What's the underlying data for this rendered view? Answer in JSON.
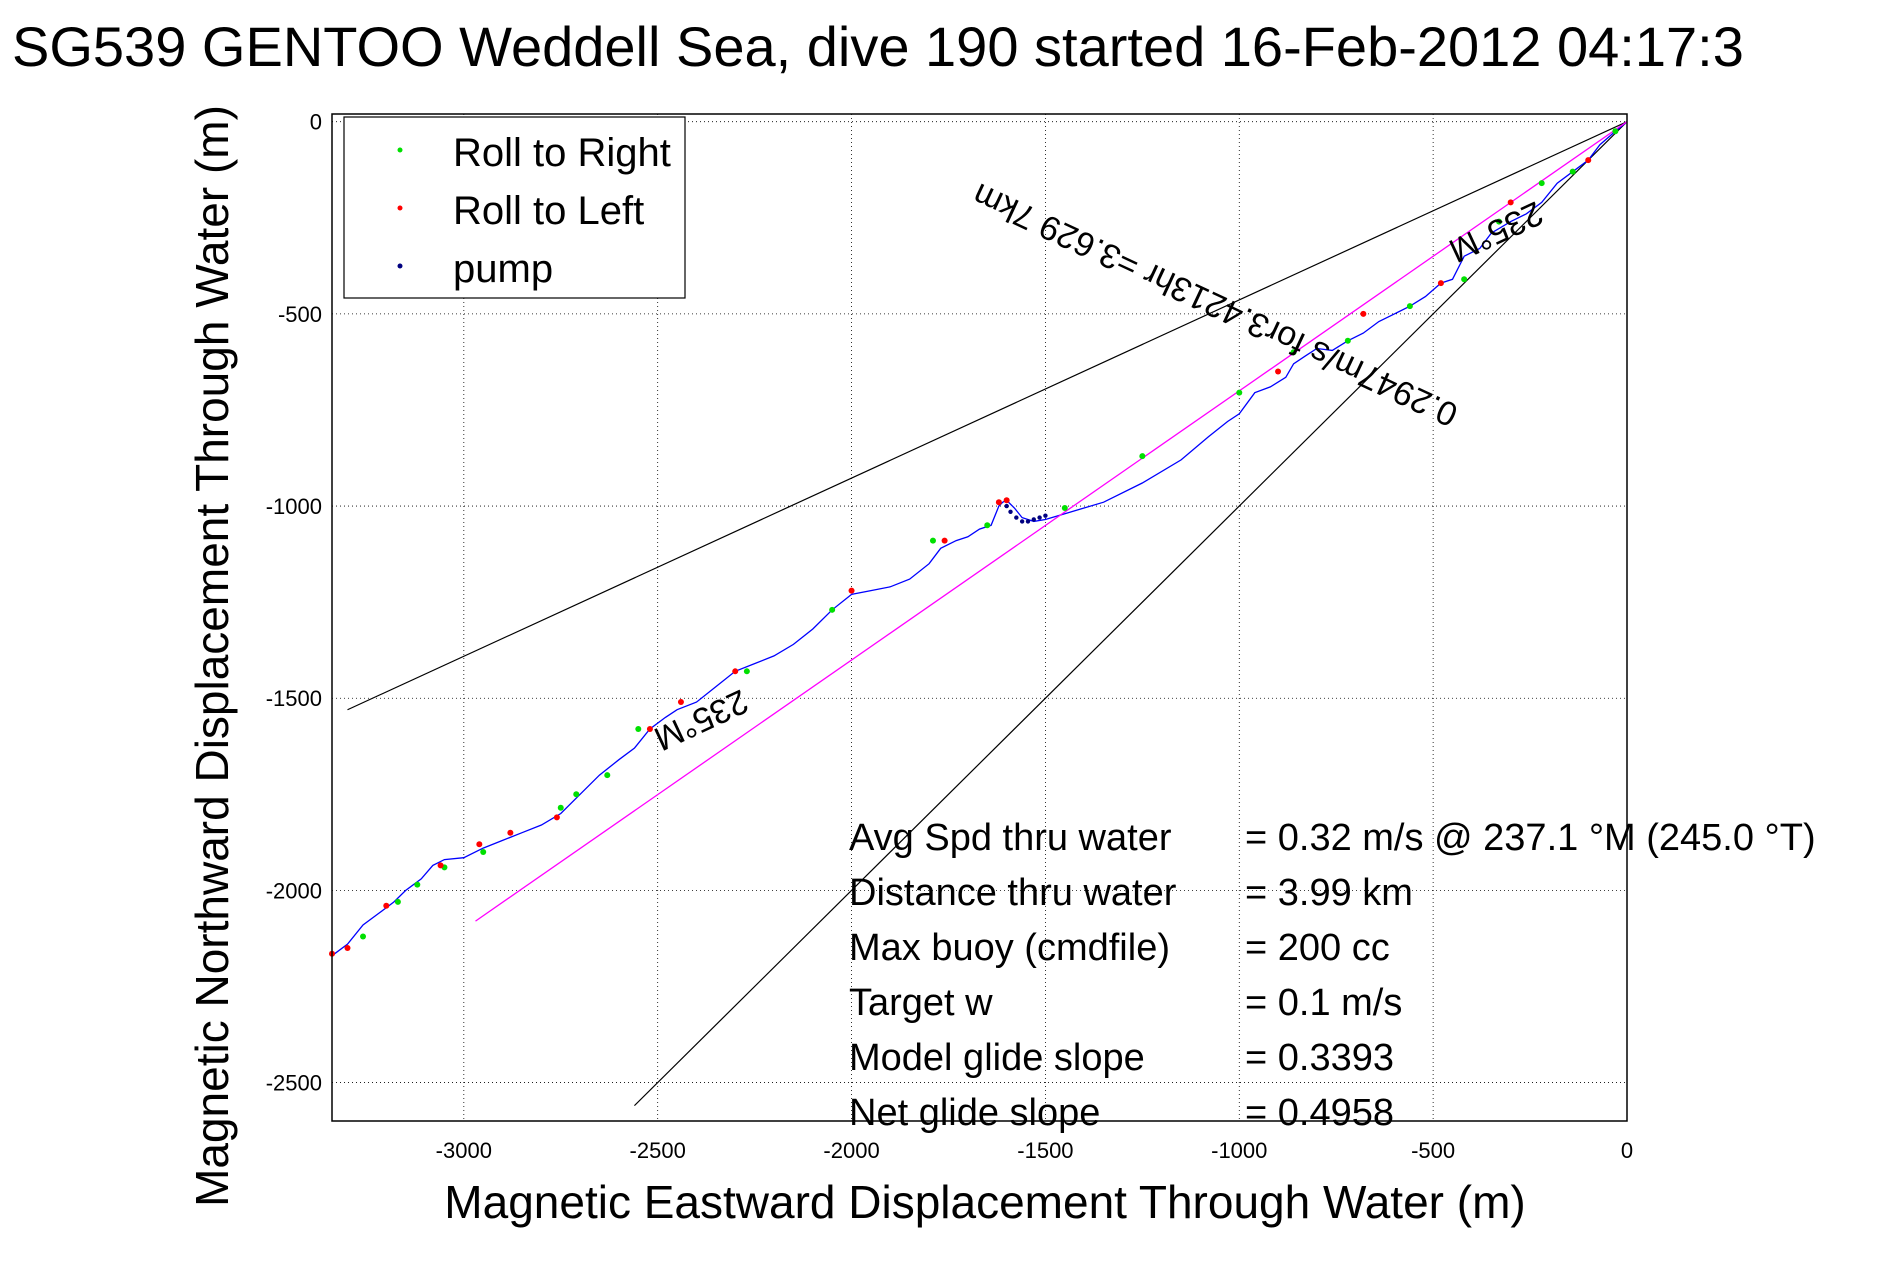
{
  "chart_data": {
    "type": "line",
    "title": "SG539 GENTOO Weddell Sea, dive 190 started 16-Feb-2012 04:17:3",
    "xlabel": "Magnetic Eastward Displacement Through Water (m)",
    "ylabel": "Magnetic Northward Displacement Through Water (m)",
    "xlim": [
      -3340,
      0
    ],
    "ylim": [
      -2600,
      20
    ],
    "x_ticks": [
      -3000,
      -2500,
      -2000,
      -1500,
      -1000,
      -500,
      0
    ],
    "y_ticks": [
      0,
      -500,
      -1000,
      -1500,
      -2000,
      -2500
    ],
    "grid": true,
    "legend": {
      "placement": "top-left",
      "entries": [
        {
          "label": "Roll to Right",
          "color": "#00e000"
        },
        {
          "label": "Roll to Left",
          "color": "#ff0000"
        },
        {
          "label": "pump",
          "color": "#000080"
        }
      ]
    },
    "series": [
      {
        "color": "#0000ff",
        "x": [
          0,
          -30,
          -70,
          -100,
          -140,
          -180,
          -220,
          -260,
          -300,
          -350,
          -380,
          -420,
          -450,
          -480,
          -520,
          -560,
          -600,
          -640,
          -680,
          -720,
          -760,
          -800,
          -830,
          -860,
          -880,
          -920,
          -960,
          -1000,
          -1030,
          -1080,
          -1150,
          -1250,
          -1350,
          -1450,
          -1500,
          -1530,
          -1560,
          -1580,
          -1600,
          -1610,
          -1620,
          -1640,
          -1670,
          -1700,
          -1730,
          -1770,
          -1800,
          -1850,
          -1900,
          -1950,
          -2000,
          -2050,
          -2100,
          -2150,
          -2200,
          -2250,
          -2300,
          -2350,
          -2400,
          -2450,
          -2480,
          -2520,
          -2560,
          -2600,
          -2650,
          -2700,
          -2750,
          -2800,
          -2850,
          -2900,
          -2950,
          -3000,
          -3050,
          -3080,
          -3110,
          -3150,
          -3180,
          -3220,
          -3260,
          -3300,
          -3340
        ],
        "y": [
          0,
          -25,
          -60,
          -100,
          -130,
          -160,
          -210,
          -240,
          -260,
          -290,
          -330,
          -350,
          -410,
          -420,
          -455,
          -480,
          -500,
          -520,
          -550,
          -570,
          -595,
          -590,
          -610,
          -630,
          -665,
          -690,
          -705,
          -760,
          -780,
          -820,
          -880,
          -940,
          -990,
          -1020,
          -1035,
          -1040,
          -1030,
          -1005,
          -985,
          -990,
          -1000,
          -1050,
          -1060,
          -1080,
          -1090,
          -1110,
          -1150,
          -1190,
          -1210,
          -1220,
          -1230,
          -1270,
          -1320,
          -1360,
          -1390,
          -1410,
          -1430,
          -1470,
          -1510,
          -1530,
          -1550,
          -1580,
          -1630,
          -1660,
          -1700,
          -1750,
          -1800,
          -1830,
          -1850,
          -1870,
          -1890,
          -1915,
          -1920,
          -1935,
          -1970,
          -2000,
          -2030,
          -2060,
          -2090,
          -2140,
          -2170
        ]
      },
      {
        "color": "#ff00ff",
        "x": [
          0,
          -2970
        ],
        "y": [
          0,
          -2080
        ]
      }
    ],
    "guide_lines": [
      {
        "color": "#000000",
        "x": [
          0,
          -3300
        ],
        "y": [
          0,
          -1530
        ]
      },
      {
        "color": "#000000",
        "x": [
          0,
          -2560
        ],
        "y": [
          0,
          -2560
        ]
      }
    ],
    "markers": {
      "roll_right": {
        "color": "#00e000",
        "x": [
          -30,
          -140,
          -220,
          -330,
          -420,
          -560,
          -720,
          -860,
          -1000,
          -1250,
          -1450,
          -1650,
          -1790,
          -2050,
          -2270,
          -2550,
          -2630,
          -2710,
          -2750,
          -2950,
          -3050,
          -3120,
          -3170,
          -3260
        ],
        "y": [
          -25,
          -130,
          -160,
          -260,
          -410,
          -480,
          -570,
          -600,
          -705,
          -870,
          -1005,
          -1050,
          -1090,
          -1270,
          -1430,
          -1580,
          -1700,
          -1750,
          -1785,
          -1900,
          -1940,
          -1985,
          -2030,
          -2120
        ]
      },
      "roll_left": {
        "color": "#ff0000",
        "x": [
          -100,
          -300,
          -480,
          -680,
          -900,
          -1600,
          -1620,
          -1760,
          -2000,
          -2300,
          -2440,
          -2520,
          -2760,
          -2880,
          -2960,
          -3060,
          -3200,
          -3300,
          -3340
        ],
        "y": [
          -100,
          -210,
          -420,
          -500,
          -650,
          -985,
          -990,
          -1090,
          -1220,
          -1430,
          -1510,
          -1580,
          -1810,
          -1850,
          -1880,
          -1935,
          -2040,
          -2150,
          -2165
        ]
      },
      "pump": {
        "color": "#000080",
        "x": [
          -1500,
          -1515,
          -1530,
          -1545,
          -1560,
          -1575,
          -1590,
          -1600
        ],
        "y": [
          -1025,
          -1030,
          -1035,
          -1040,
          -1040,
          -1030,
          -1015,
          -1000
        ]
      }
    },
    "annotations": [
      {
        "text": "235°M",
        "x": -350,
        "y": -260,
        "rotate": 155
      },
      {
        "text": "0.2947m/s for3.4213hr =3.629 7km",
        "x": -1050,
        "y": -450,
        "rotate": 205
      },
      {
        "text": "235°M",
        "x": -2400,
        "y": -1530,
        "rotate": 155
      }
    ],
    "stats": [
      {
        "label": "Avg Spd thru water",
        "value": "=  0.32 m/s @ 237.1 °M (245.0 °T)"
      },
      {
        "label": "Distance thru water",
        "value": "=  3.99 km"
      },
      {
        "label": "Max buoy (cmdfile)",
        "value": "= 200 cc"
      },
      {
        "label": "Target w",
        "value": "= 0.1 m/s"
      },
      {
        "label": "Model glide slope",
        "value": "= 0.3393"
      },
      {
        "label": "Net glide slope",
        "value": "= 0.4958"
      }
    ]
  }
}
